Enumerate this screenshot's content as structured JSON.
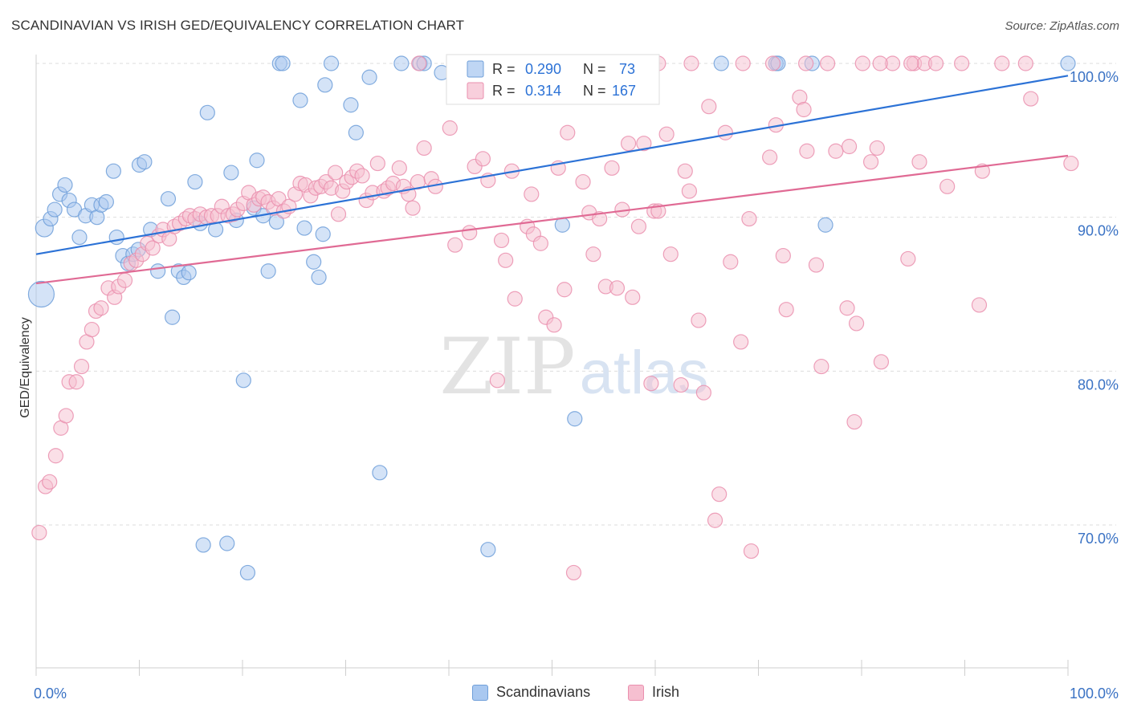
{
  "title": "SCANDINAVIAN VS IRISH GED/EQUIVALENCY CORRELATION CHART",
  "source": "Source: ZipAtlas.com",
  "watermark": {
    "zip": "ZIP",
    "atlas": "atlas"
  },
  "colors": {
    "blue_fill": "#a9c8f0",
    "blue_stroke": "#6f9fd9",
    "blue_line": "#2c72d6",
    "pink_fill": "#f6bfd0",
    "pink_stroke": "#ea8fae",
    "pink_line": "#e06a94",
    "axis_label": "#3a72c4",
    "grid": "#dddddd"
  },
  "legend_box": {
    "rows": [
      {
        "r_label": "R =",
        "r_value": "0.290",
        "n_label": "N =",
        "n_value": "73"
      },
      {
        "r_label": "R =",
        "r_value": "0.314",
        "n_label": "N =",
        "n_value": "167"
      }
    ]
  },
  "chart_data": {
    "type": "scatter",
    "title": "SCANDINAVIAN VS IRISH GED/EQUIVALENCY CORRELATION CHART",
    "xlabel": "",
    "ylabel": "GED/Equivalency",
    "x_tick_labels": [
      "0.0%",
      "100.0%"
    ],
    "y_tick_labels": [
      "70.0%",
      "80.0%",
      "90.0%",
      "100.0%"
    ],
    "y_ticks": [
      70,
      80,
      90,
      100
    ],
    "xlim": [
      0,
      100
    ],
    "ylim": [
      60,
      101
    ],
    "grid": true,
    "legend_position": "top-center",
    "series": [
      {
        "name": "Scandinavians",
        "R": 0.29,
        "N": 73,
        "trend": {
          "x": [
            0,
            100
          ],
          "y": [
            87.6,
            99.2
          ]
        },
        "points": [
          [
            0.5,
            85.0,
            16
          ],
          [
            0.8,
            89.3,
            11
          ],
          [
            1.4,
            89.9,
            9
          ],
          [
            1.8,
            90.5,
            9
          ],
          [
            2.3,
            91.5,
            9
          ],
          [
            2.8,
            92.1,
            9
          ],
          [
            3.2,
            91.1,
            9
          ],
          [
            3.7,
            90.5,
            9
          ],
          [
            4.2,
            88.7,
            9
          ],
          [
            4.8,
            90.1,
            9
          ],
          [
            5.4,
            90.8,
            9
          ],
          [
            5.9,
            90.0,
            9
          ],
          [
            6.3,
            90.8,
            9
          ],
          [
            6.8,
            91.0,
            9
          ],
          [
            7.5,
            93.0,
            9
          ],
          [
            7.8,
            88.7,
            9
          ],
          [
            8.4,
            87.5,
            9
          ],
          [
            8.9,
            87.0,
            9
          ],
          [
            9.4,
            87.6,
            9
          ],
          [
            9.9,
            87.9,
            9
          ],
          [
            10.0,
            93.4,
            9
          ],
          [
            10.5,
            93.6,
            9
          ],
          [
            11.1,
            89.2,
            9
          ],
          [
            11.8,
            86.5,
            9
          ],
          [
            12.8,
            91.2,
            9
          ],
          [
            13.2,
            83.5,
            9
          ],
          [
            13.8,
            86.5,
            9
          ],
          [
            14.3,
            86.1,
            9
          ],
          [
            14.8,
            86.4,
            9
          ],
          [
            15.4,
            92.3,
            9
          ],
          [
            15.9,
            89.6,
            9
          ],
          [
            16.6,
            96.8,
            9
          ],
          [
            17.4,
            89.2,
            9
          ],
          [
            18.5,
            68.8,
            9
          ],
          [
            18.9,
            92.9,
            9
          ],
          [
            19.4,
            89.8,
            9
          ],
          [
            20.1,
            79.4,
            9
          ],
          [
            20.5,
            66.9,
            9
          ],
          [
            21.1,
            90.6,
            9
          ],
          [
            21.4,
            93.7,
            9
          ],
          [
            22.0,
            90.1,
            9
          ],
          [
            22.5,
            86.5,
            9
          ],
          [
            23.3,
            89.7,
            9
          ],
          [
            23.6,
            100.0,
            9
          ],
          [
            23.9,
            100.0,
            9
          ],
          [
            25.6,
            97.6,
            9
          ],
          [
            26.0,
            89.3,
            9
          ],
          [
            26.9,
            87.1,
            9
          ],
          [
            27.4,
            86.1,
            9
          ],
          [
            27.8,
            88.9,
            9
          ],
          [
            28.0,
            98.6,
            9
          ],
          [
            28.6,
            100.0,
            9
          ],
          [
            30.5,
            97.3,
            9
          ],
          [
            31.0,
            95.5,
            9
          ],
          [
            32.3,
            99.1,
            9
          ],
          [
            33.3,
            73.4,
            9
          ],
          [
            35.4,
            100.0,
            9
          ],
          [
            37.2,
            100.0,
            9
          ],
          [
            37.6,
            100.0,
            9
          ],
          [
            39.3,
            99.4,
            9
          ],
          [
            42.2,
            100.0,
            9
          ],
          [
            43.8,
            68.4,
            9
          ],
          [
            46.2,
            100.0,
            9
          ],
          [
            47.8,
            100.0,
            9
          ],
          [
            51.0,
            89.5,
            9
          ],
          [
            52.2,
            76.9,
            9
          ],
          [
            66.4,
            100.0,
            9
          ],
          [
            71.7,
            100.0,
            9
          ],
          [
            71.9,
            100.0,
            9
          ],
          [
            76.5,
            89.5,
            9
          ],
          [
            75.2,
            100.0,
            9
          ],
          [
            100.0,
            100.0,
            9
          ],
          [
            16.2,
            68.7,
            9
          ]
        ]
      },
      {
        "name": "Irish",
        "R": 0.314,
        "N": 167,
        "trend": {
          "x": [
            0,
            100
          ],
          "y": [
            85.7,
            94.0
          ]
        },
        "points": [
          [
            0.3,
            69.5,
            9
          ],
          [
            0.9,
            72.5,
            9
          ],
          [
            1.3,
            72.8,
            9
          ],
          [
            1.9,
            74.5,
            9
          ],
          [
            2.4,
            76.3,
            9
          ],
          [
            2.9,
            77.1,
            9
          ],
          [
            3.2,
            79.3,
            9
          ],
          [
            3.9,
            79.3,
            9
          ],
          [
            4.4,
            80.3,
            9
          ],
          [
            4.9,
            81.9,
            9
          ],
          [
            5.4,
            82.7,
            9
          ],
          [
            5.8,
            83.9,
            9
          ],
          [
            6.3,
            84.1,
            9
          ],
          [
            7.0,
            85.4,
            9
          ],
          [
            7.6,
            84.8,
            9
          ],
          [
            8.0,
            85.5,
            9
          ],
          [
            8.6,
            85.9,
            9
          ],
          [
            9.2,
            87.0,
            9
          ],
          [
            9.7,
            87.2,
            9
          ],
          [
            10.3,
            87.6,
            9
          ],
          [
            10.8,
            88.3,
            9
          ],
          [
            11.3,
            88.0,
            9
          ],
          [
            11.9,
            88.8,
            9
          ],
          [
            12.3,
            89.2,
            9
          ],
          [
            12.9,
            88.6,
            9
          ],
          [
            13.4,
            89.4,
            9
          ],
          [
            13.9,
            89.6,
            9
          ],
          [
            14.5,
            89.9,
            9
          ],
          [
            14.9,
            90.1,
            9
          ],
          [
            15.4,
            89.9,
            9
          ],
          [
            15.9,
            90.2,
            9
          ],
          [
            16.5,
            90.0,
            9
          ],
          [
            17.0,
            90.1,
            9
          ],
          [
            17.6,
            90.1,
            9
          ],
          [
            18.0,
            90.7,
            9
          ],
          [
            18.6,
            90.1,
            9
          ],
          [
            19.1,
            90.2,
            9
          ],
          [
            19.5,
            90.5,
            9
          ],
          [
            20.1,
            90.9,
            9
          ],
          [
            20.6,
            91.6,
            9
          ],
          [
            21.1,
            90.8,
            9
          ],
          [
            21.6,
            91.2,
            9
          ],
          [
            22.0,
            91.3,
            9
          ],
          [
            22.5,
            91.0,
            9
          ],
          [
            23.0,
            90.6,
            9
          ],
          [
            23.5,
            91.2,
            9
          ],
          [
            24.0,
            90.4,
            9
          ],
          [
            24.5,
            90.7,
            9
          ],
          [
            25.1,
            91.5,
            9
          ],
          [
            25.6,
            92.2,
            9
          ],
          [
            26.1,
            92.1,
            9
          ],
          [
            26.6,
            91.4,
            9
          ],
          [
            27.1,
            91.9,
            9
          ],
          [
            27.6,
            92.0,
            9
          ],
          [
            28.1,
            92.3,
            9
          ],
          [
            28.6,
            91.9,
            9
          ],
          [
            29.0,
            92.9,
            9
          ],
          [
            29.3,
            90.2,
            9
          ],
          [
            29.7,
            91.7,
            9
          ],
          [
            30.1,
            92.3,
            9
          ],
          [
            30.6,
            92.6,
            9
          ],
          [
            31.1,
            93.0,
            9
          ],
          [
            31.6,
            92.7,
            9
          ],
          [
            32.0,
            91.1,
            9
          ],
          [
            32.6,
            91.6,
            9
          ],
          [
            33.1,
            93.5,
            9
          ],
          [
            33.7,
            91.7,
            9
          ],
          [
            34.1,
            91.9,
            9
          ],
          [
            34.6,
            92.2,
            9
          ],
          [
            35.2,
            93.2,
            9
          ],
          [
            35.6,
            92.0,
            9
          ],
          [
            36.1,
            91.5,
            9
          ],
          [
            36.5,
            90.6,
            9
          ],
          [
            37.0,
            92.3,
            9
          ],
          [
            37.6,
            94.5,
            9
          ],
          [
            38.3,
            92.5,
            9
          ],
          [
            38.7,
            92.0,
            9
          ],
          [
            40.1,
            95.8,
            9
          ],
          [
            40.6,
            88.2,
            9
          ],
          [
            42.0,
            89.0,
            9
          ],
          [
            42.5,
            93.3,
            9
          ],
          [
            43.3,
            93.8,
            9
          ],
          [
            43.8,
            92.4,
            9
          ],
          [
            44.7,
            79.4,
            9
          ],
          [
            45.1,
            88.5,
            9
          ],
          [
            45.5,
            87.2,
            9
          ],
          [
            46.1,
            93.0,
            9
          ],
          [
            46.4,
            84.7,
            9
          ],
          [
            47.6,
            89.4,
            9
          ],
          [
            48.2,
            88.9,
            9
          ],
          [
            47.1,
            100.0,
            9
          ],
          [
            48.0,
            91.5,
            9
          ],
          [
            48.9,
            88.3,
            9
          ],
          [
            49.4,
            83.5,
            9
          ],
          [
            50.2,
            83.0,
            9
          ],
          [
            50.6,
            93.2,
            9
          ],
          [
            51.2,
            85.3,
            9
          ],
          [
            51.5,
            95.5,
            9
          ],
          [
            52.1,
            66.9,
            9
          ],
          [
            53.0,
            92.3,
            9
          ],
          [
            53.6,
            90.3,
            9
          ],
          [
            54.0,
            87.6,
            9
          ],
          [
            54.6,
            89.9,
            9
          ],
          [
            55.2,
            85.5,
            9
          ],
          [
            55.8,
            93.2,
            9
          ],
          [
            56.3,
            85.4,
            9
          ],
          [
            56.8,
            90.5,
            9
          ],
          [
            57.4,
            94.8,
            9
          ],
          [
            57.8,
            84.8,
            9
          ],
          [
            58.4,
            89.4,
            9
          ],
          [
            58.9,
            94.8,
            9
          ],
          [
            59.6,
            79.2,
            9
          ],
          [
            59.9,
            90.4,
            9
          ],
          [
            60.3,
            90.4,
            9
          ],
          [
            61.1,
            95.4,
            9
          ],
          [
            61.5,
            87.6,
            9
          ],
          [
            62.5,
            79.1,
            9
          ],
          [
            62.9,
            93.0,
            9
          ],
          [
            63.3,
            91.7,
            9
          ],
          [
            64.2,
            83.3,
            9
          ],
          [
            64.7,
            78.6,
            9
          ],
          [
            65.2,
            97.2,
            9
          ],
          [
            65.8,
            70.3,
            9
          ],
          [
            66.2,
            72.0,
            9
          ],
          [
            66.8,
            95.5,
            9
          ],
          [
            67.3,
            87.1,
            9
          ],
          [
            68.3,
            81.9,
            9
          ],
          [
            69.1,
            89.9,
            9
          ],
          [
            69.3,
            68.3,
            9
          ],
          [
            71.1,
            93.9,
            9
          ],
          [
            71.7,
            96.0,
            9
          ],
          [
            72.4,
            87.5,
            9
          ],
          [
            72.7,
            84.0,
            9
          ],
          [
            74.0,
            97.8,
            9
          ],
          [
            74.4,
            97.0,
            9
          ],
          [
            74.7,
            94.3,
            9
          ],
          [
            75.6,
            86.9,
            9
          ],
          [
            76.1,
            80.3,
            9
          ],
          [
            76.7,
            100.0,
            9
          ],
          [
            77.5,
            94.3,
            9
          ],
          [
            78.6,
            84.1,
            9
          ],
          [
            78.8,
            94.6,
            9
          ],
          [
            79.3,
            76.7,
            9
          ],
          [
            79.5,
            83.1,
            9
          ],
          [
            80.1,
            100.0,
            9
          ],
          [
            80.9,
            93.6,
            9
          ],
          [
            81.5,
            94.5,
            9
          ],
          [
            81.9,
            80.6,
            9
          ],
          [
            83.0,
            100.0,
            9
          ],
          [
            84.5,
            87.3,
            9
          ],
          [
            85.1,
            100.0,
            9
          ],
          [
            85.6,
            93.6,
            9
          ],
          [
            86.1,
            100.0,
            9
          ],
          [
            87.2,
            100.0,
            9
          ],
          [
            88.3,
            92.0,
            9
          ],
          [
            89.7,
            100.0,
            9
          ],
          [
            91.4,
            84.3,
            9
          ],
          [
            91.7,
            93.0,
            9
          ],
          [
            93.6,
            100.0,
            9
          ],
          [
            95.9,
            100.0,
            9
          ],
          [
            96.4,
            97.7,
            9
          ],
          [
            100.3,
            93.5,
            9
          ],
          [
            68.5,
            100.0,
            9
          ],
          [
            71.4,
            100.0,
            9
          ],
          [
            74.6,
            100.0,
            9
          ],
          [
            81.8,
            100.0,
            9
          ],
          [
            84.8,
            100.0,
            9
          ],
          [
            63.5,
            100.0,
            9
          ],
          [
            60.3,
            100.0,
            9
          ],
          [
            37.1,
            100.0,
            9
          ]
        ]
      }
    ]
  }
}
